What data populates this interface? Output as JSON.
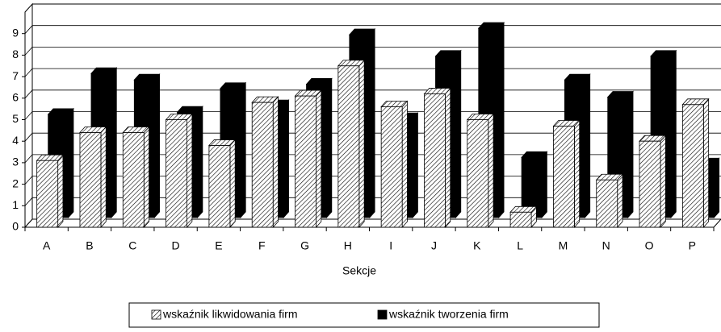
{
  "chart_data": {
    "type": "bar3d",
    "x_label": "Sekcje",
    "categories": [
      "A",
      "B",
      "C",
      "D",
      "E",
      "F",
      "G",
      "H",
      "I",
      "J",
      "K",
      "L",
      "M",
      "N",
      "O",
      "P"
    ],
    "series": [
      {
        "name": "wskaźnik likwidowania firm",
        "color": "hatch",
        "values": [
          3.1,
          4.4,
          4.4,
          5.0,
          3.8,
          5.8,
          6.1,
          7.5,
          5.6,
          6.2,
          5.0,
          0.7,
          4.7,
          2.2,
          4.0,
          5.7
        ]
      },
      {
        "name": "wskaźnik tworzenia firm",
        "color": "#000000",
        "values": [
          4.8,
          6.7,
          6.4,
          4.9,
          6.0,
          5.2,
          6.2,
          8.5,
          4.6,
          7.5,
          8.8,
          2.8,
          6.4,
          5.6,
          7.5,
          2.5
        ]
      }
    ],
    "ylim": [
      0,
      10
    ],
    "yticks": [
      0,
      1,
      2,
      3,
      4,
      5,
      6,
      7,
      8,
      9
    ],
    "grid": true,
    "legend": "bottom"
  }
}
